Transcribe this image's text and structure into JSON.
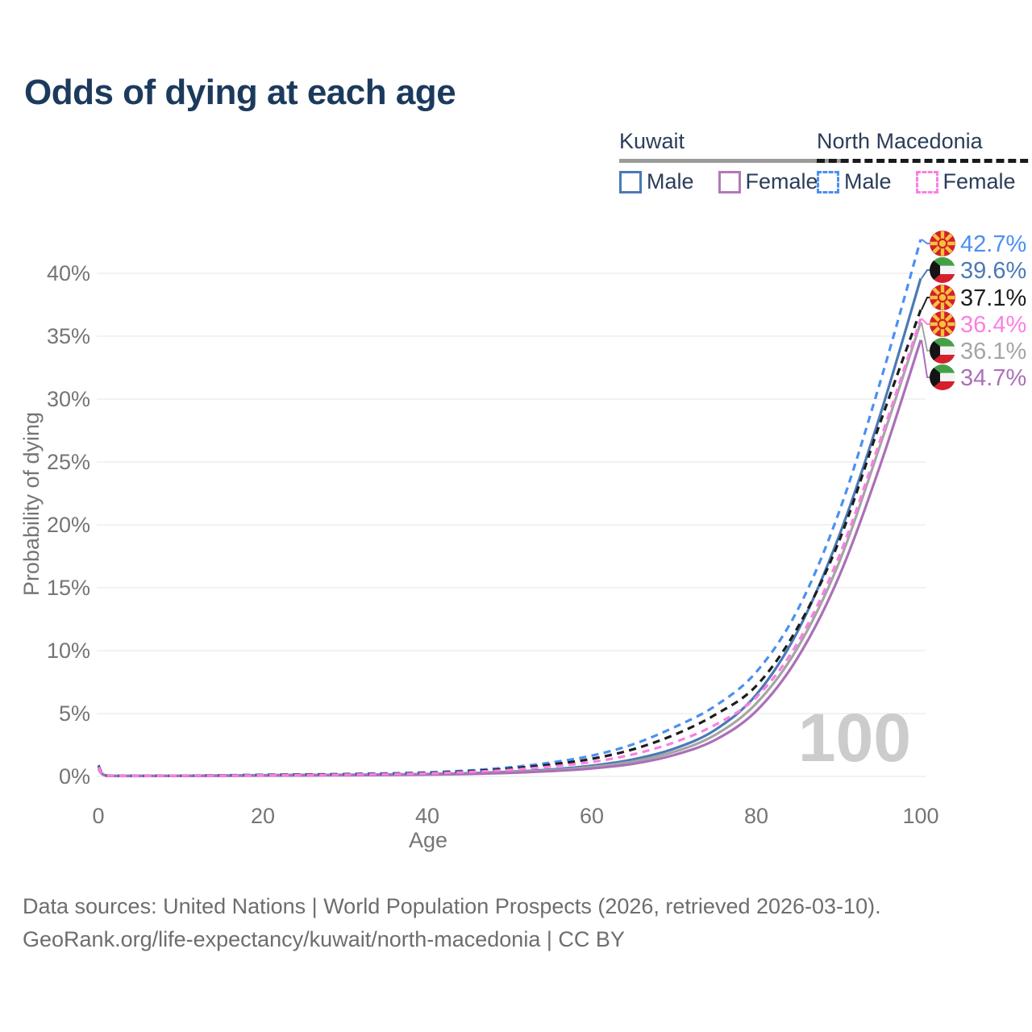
{
  "title": "Odds of dying at each age",
  "legend": {
    "groups": [
      {
        "country": "Kuwait",
        "style": "solid",
        "underline_color": "#9b9b9b",
        "items": [
          {
            "label": "Male",
            "color": "#4a7ab5"
          },
          {
            "label": "Female",
            "color": "#b478b9"
          }
        ]
      },
      {
        "country": "North Macedonia",
        "style": "dashed",
        "underline_color": "#1a1a1a",
        "items": [
          {
            "label": "Male",
            "color": "#4b8ff2"
          },
          {
            "label": "Female",
            "color": "#fb7fe3"
          }
        ]
      }
    ]
  },
  "watermark": "100",
  "footer": {
    "line1": "Data sources: United Nations | World Population Prospects (2026, retrieved 2026-03-10).",
    "line2": "GeoRank.org/life-expectancy/kuwait/north-macedonia | CC BY"
  },
  "colors": {
    "title": "#1c3a5c",
    "axis_text": "#757575",
    "gridline": "#e9e9e9",
    "watermark": "#cccccc",
    "footer_text": "#6d6d6d"
  },
  "chart_data": {
    "type": "line",
    "xlabel": "Age",
    "ylabel": "Probability of dying",
    "xlim": [
      0,
      100
    ],
    "ylim": [
      0,
      43.5
    ],
    "x_ticks": [
      0,
      20,
      40,
      60,
      80,
      100
    ],
    "y_ticks_percent": [
      0,
      5,
      10,
      15,
      20,
      25,
      30,
      35,
      40
    ],
    "grid": "horizontal",
    "legend_position": "top-right",
    "hover_age": "100",
    "ages": [
      0,
      1,
      5,
      10,
      15,
      20,
      25,
      30,
      35,
      40,
      45,
      50,
      55,
      60,
      65,
      70,
      75,
      80,
      85,
      90,
      95,
      100
    ],
    "series": [
      {
        "name": "North Macedonia Male",
        "country": "north-macedonia",
        "sex": "male",
        "color": "#4b8ff2",
        "dashed": true,
        "end_label": "42.7%",
        "end_value": 42.7,
        "values": [
          0.9,
          0.07,
          0.05,
          0.06,
          0.09,
          0.13,
          0.16,
          0.19,
          0.24,
          0.32,
          0.47,
          0.72,
          1.1,
          1.65,
          2.55,
          3.9,
          5.6,
          8.3,
          13.2,
          20.9,
          31.2,
          42.7
        ]
      },
      {
        "name": "Kuwait Male",
        "country": "kuwait",
        "sex": "male",
        "color": "#4a7ab5",
        "dashed": false,
        "end_label": "39.6%",
        "end_value": 39.6,
        "values": [
          0.75,
          0.06,
          0.04,
          0.05,
          0.07,
          0.1,
          0.12,
          0.13,
          0.15,
          0.19,
          0.25,
          0.37,
          0.55,
          0.85,
          1.35,
          2.2,
          3.7,
          6.5,
          11.5,
          19.0,
          28.6,
          39.6
        ]
      },
      {
        "name": "North Macedonia Both sexes",
        "country": "north-macedonia",
        "sex": "both",
        "color": "#1d1d1d",
        "dashed": true,
        "end_label": "37.1%",
        "end_value": 37.1,
        "values": [
          0.82,
          0.065,
          0.045,
          0.055,
          0.08,
          0.11,
          0.14,
          0.17,
          0.21,
          0.28,
          0.41,
          0.62,
          0.94,
          1.4,
          2.15,
          3.3,
          4.9,
          7.2,
          11.8,
          18.6,
          28.0,
          37.1
        ]
      },
      {
        "name": "North Macedonia Female",
        "country": "north-macedonia",
        "sex": "female",
        "color": "#fb7fe3",
        "dashed": true,
        "end_label": "36.4%",
        "end_value": 36.4,
        "values": [
          0.75,
          0.06,
          0.04,
          0.05,
          0.07,
          0.09,
          0.11,
          0.14,
          0.18,
          0.24,
          0.35,
          0.52,
          0.78,
          1.15,
          1.75,
          2.7,
          4.1,
          6.3,
          10.6,
          17.4,
          26.6,
          36.4
        ]
      },
      {
        "name": "Kuwait Both sexes",
        "country": "kuwait",
        "sex": "both",
        "color": "#a5a5a5",
        "dashed": false,
        "end_label": "36.1%",
        "end_value": 36.1,
        "values": [
          0.68,
          0.055,
          0.035,
          0.045,
          0.06,
          0.08,
          0.1,
          0.11,
          0.13,
          0.17,
          0.22,
          0.33,
          0.49,
          0.75,
          1.18,
          1.95,
          3.3,
          5.8,
          10.2,
          16.9,
          26.2,
          36.1
        ]
      },
      {
        "name": "Kuwait Female",
        "country": "kuwait",
        "sex": "female",
        "color": "#ab6fb8",
        "dashed": false,
        "end_label": "34.7%",
        "end_value": 34.7,
        "values": [
          0.6,
          0.05,
          0.03,
          0.04,
          0.05,
          0.06,
          0.07,
          0.09,
          0.11,
          0.14,
          0.19,
          0.28,
          0.42,
          0.63,
          1.0,
          1.7,
          2.9,
          5.2,
          9.4,
          15.8,
          24.6,
          34.7
        ]
      }
    ]
  }
}
